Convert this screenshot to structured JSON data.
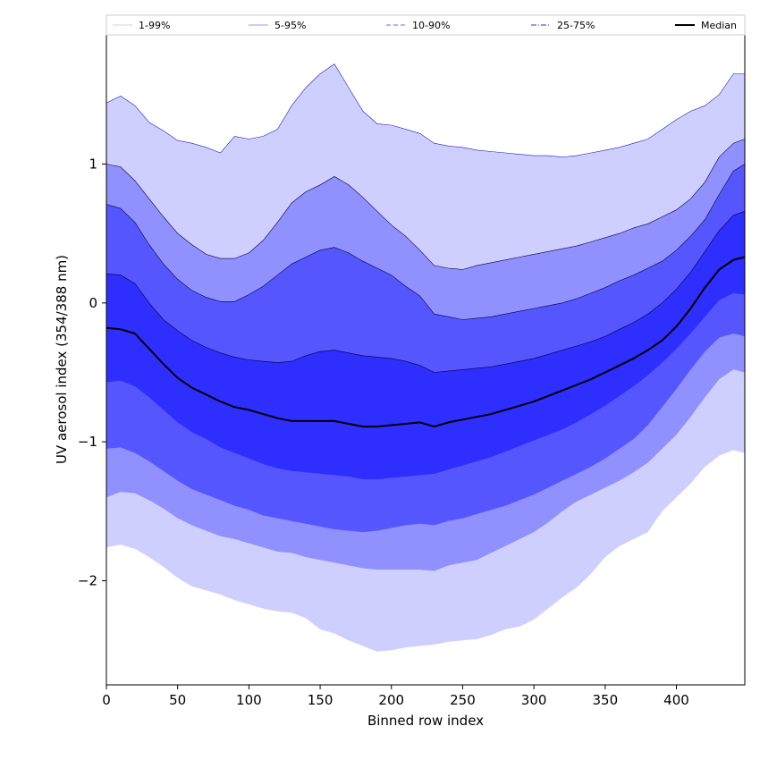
{
  "chart_data": {
    "type": "area",
    "title": "",
    "xlabel": "Binned row index",
    "ylabel": "UV aerosol index (354/388 nm)",
    "xlim": [
      0,
      448
    ],
    "ylim": [
      -2.75,
      1.93
    ],
    "xticks": [
      0,
      50,
      100,
      150,
      200,
      250,
      300,
      350,
      400
    ],
    "xtick_labels": [
      "0",
      "50",
      "100",
      "150",
      "200",
      "250",
      "300",
      "350",
      "400"
    ],
    "yticks": [
      1,
      0,
      -1,
      -2
    ],
    "ytick_labels": [
      "1",
      "0",
      "−1",
      "−2"
    ],
    "grid": false,
    "legend_position": "top",
    "x": [
      0,
      10,
      20,
      30,
      40,
      50,
      60,
      70,
      80,
      90,
      100,
      110,
      120,
      130,
      140,
      150,
      160,
      170,
      180,
      190,
      200,
      210,
      220,
      230,
      240,
      250,
      260,
      270,
      280,
      290,
      300,
      310,
      320,
      330,
      340,
      350,
      360,
      370,
      380,
      390,
      400,
      410,
      420,
      430,
      440,
      448
    ],
    "bands": [
      {
        "name": "1-99%",
        "fill": "#cfcfff",
        "line_color": "#cfcfff",
        "line_style": "solid",
        "upper": [
          1.44,
          1.49,
          1.42,
          1.3,
          1.24,
          1.17,
          1.15,
          1.12,
          1.08,
          1.2,
          1.18,
          1.2,
          1.25,
          1.42,
          1.55,
          1.65,
          1.72,
          1.55,
          1.38,
          1.29,
          1.28,
          1.25,
          1.22,
          1.15,
          1.13,
          1.12,
          1.1,
          1.09,
          1.08,
          1.07,
          1.06,
          1.06,
          1.05,
          1.06,
          1.08,
          1.1,
          1.12,
          1.15,
          1.18,
          1.25,
          1.32,
          1.38,
          1.42,
          1.5,
          1.65,
          1.65
        ],
        "lower": [
          -1.76,
          -1.74,
          -1.77,
          -1.83,
          -1.9,
          -1.98,
          -2.04,
          -2.07,
          -2.1,
          -2.14,
          -2.17,
          -2.2,
          -2.22,
          -2.23,
          -2.27,
          -2.35,
          -2.38,
          -2.43,
          -2.47,
          -2.51,
          -2.5,
          -2.48,
          -2.47,
          -2.46,
          -2.44,
          -2.43,
          -2.42,
          -2.39,
          -2.35,
          -2.33,
          -2.28,
          -2.2,
          -2.12,
          -2.05,
          -1.95,
          -1.83,
          -1.75,
          -1.7,
          -1.65,
          -1.5,
          -1.4,
          -1.3,
          -1.18,
          -1.1,
          -1.06,
          -1.08
        ]
      },
      {
        "name": "5-95%",
        "fill": "#9090ff",
        "line_color": "#9a9aff",
        "line_style": "solid",
        "upper": [
          1.0,
          0.98,
          0.88,
          0.75,
          0.62,
          0.5,
          0.42,
          0.35,
          0.32,
          0.32,
          0.36,
          0.45,
          0.58,
          0.72,
          0.8,
          0.85,
          0.91,
          0.85,
          0.76,
          0.66,
          0.56,
          0.48,
          0.38,
          0.27,
          0.25,
          0.24,
          0.27,
          0.29,
          0.31,
          0.33,
          0.35,
          0.37,
          0.39,
          0.41,
          0.44,
          0.47,
          0.5,
          0.54,
          0.57,
          0.62,
          0.67,
          0.75,
          0.87,
          1.05,
          1.15,
          1.18
        ],
        "lower": [
          -1.4,
          -1.36,
          -1.37,
          -1.42,
          -1.48,
          -1.55,
          -1.6,
          -1.64,
          -1.68,
          -1.7,
          -1.73,
          -1.76,
          -1.79,
          -1.8,
          -1.83,
          -1.85,
          -1.87,
          -1.89,
          -1.91,
          -1.92,
          -1.92,
          -1.92,
          -1.92,
          -1.93,
          -1.89,
          -1.87,
          -1.85,
          -1.8,
          -1.75,
          -1.7,
          -1.65,
          -1.58,
          -1.5,
          -1.43,
          -1.38,
          -1.33,
          -1.28,
          -1.22,
          -1.15,
          -1.05,
          -0.95,
          -0.82,
          -0.68,
          -0.55,
          -0.48,
          -0.5
        ]
      },
      {
        "name": "10-90%",
        "fill": "#5656ff",
        "line_color": "#6a6aff",
        "line_style": "dashed",
        "upper": [
          0.71,
          0.68,
          0.58,
          0.42,
          0.28,
          0.17,
          0.09,
          0.04,
          0.01,
          0.01,
          0.06,
          0.12,
          0.2,
          0.28,
          0.33,
          0.38,
          0.4,
          0.36,
          0.3,
          0.25,
          0.2,
          0.12,
          0.05,
          -0.08,
          -0.1,
          -0.12,
          -0.11,
          -0.1,
          -0.08,
          -0.06,
          -0.04,
          -0.02,
          0.0,
          0.03,
          0.07,
          0.11,
          0.16,
          0.2,
          0.25,
          0.3,
          0.38,
          0.48,
          0.6,
          0.78,
          0.95,
          1.0
        ],
        "lower": [
          -1.05,
          -1.04,
          -1.08,
          -1.14,
          -1.21,
          -1.28,
          -1.34,
          -1.38,
          -1.42,
          -1.46,
          -1.49,
          -1.53,
          -1.55,
          -1.57,
          -1.59,
          -1.61,
          -1.63,
          -1.64,
          -1.65,
          -1.64,
          -1.62,
          -1.6,
          -1.59,
          -1.6,
          -1.57,
          -1.55,
          -1.52,
          -1.49,
          -1.46,
          -1.42,
          -1.38,
          -1.33,
          -1.28,
          -1.23,
          -1.18,
          -1.12,
          -1.05,
          -0.98,
          -0.88,
          -0.75,
          -0.62,
          -0.48,
          -0.35,
          -0.25,
          -0.22,
          -0.24
        ]
      },
      {
        "name": "25-75%",
        "fill": "#2e2eff",
        "line_color": "#2e2ee6",
        "line_style": "dashdot",
        "upper": [
          0.21,
          0.2,
          0.14,
          0.0,
          -0.12,
          -0.2,
          -0.27,
          -0.32,
          -0.36,
          -0.39,
          -0.41,
          -0.42,
          -0.43,
          -0.42,
          -0.38,
          -0.35,
          -0.34,
          -0.36,
          -0.38,
          -0.39,
          -0.4,
          -0.42,
          -0.45,
          -0.5,
          -0.49,
          -0.48,
          -0.47,
          -0.46,
          -0.44,
          -0.42,
          -0.4,
          -0.37,
          -0.34,
          -0.31,
          -0.28,
          -0.24,
          -0.19,
          -0.14,
          -0.08,
          0.0,
          0.1,
          0.22,
          0.37,
          0.52,
          0.63,
          0.66
        ],
        "lower": [
          -0.57,
          -0.56,
          -0.6,
          -0.68,
          -0.77,
          -0.86,
          -0.93,
          -0.98,
          -1.04,
          -1.08,
          -1.12,
          -1.16,
          -1.19,
          -1.21,
          -1.22,
          -1.23,
          -1.24,
          -1.25,
          -1.27,
          -1.27,
          -1.26,
          -1.25,
          -1.24,
          -1.23,
          -1.2,
          -1.17,
          -1.14,
          -1.11,
          -1.07,
          -1.03,
          -0.99,
          -0.95,
          -0.91,
          -0.86,
          -0.8,
          -0.74,
          -0.67,
          -0.6,
          -0.52,
          -0.43,
          -0.33,
          -0.22,
          -0.1,
          0.02,
          0.07,
          0.06
        ]
      }
    ],
    "series": [
      {
        "name": "Median",
        "color": "#000000",
        "values": [
          -0.18,
          -0.19,
          -0.22,
          -0.33,
          -0.44,
          -0.54,
          -0.61,
          -0.66,
          -0.71,
          -0.75,
          -0.77,
          -0.8,
          -0.83,
          -0.85,
          -0.85,
          -0.85,
          -0.85,
          -0.87,
          -0.89,
          -0.89,
          -0.88,
          -0.87,
          -0.86,
          -0.89,
          -0.86,
          -0.84,
          -0.82,
          -0.8,
          -0.77,
          -0.74,
          -0.71,
          -0.67,
          -0.63,
          -0.59,
          -0.55,
          -0.5,
          -0.45,
          -0.4,
          -0.34,
          -0.27,
          -0.17,
          -0.04,
          0.11,
          0.24,
          0.31,
          0.33
        ]
      }
    ]
  }
}
